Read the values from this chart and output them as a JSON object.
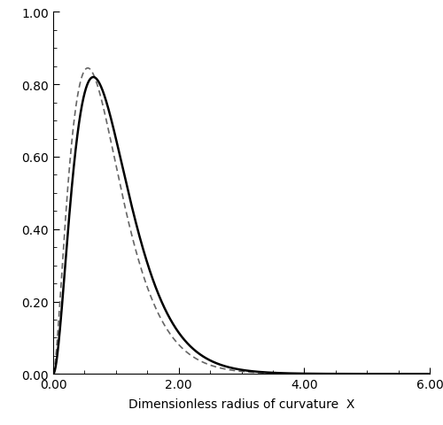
{
  "title": "",
  "xlabel": "Dimensionless radius of curvature  X",
  "ylabel": "",
  "xlim": [
    0.0,
    6.0
  ],
  "ylim": [
    0.0,
    1.0
  ],
  "xticks": [
    0.0,
    2.0,
    4.0,
    6.0
  ],
  "yticks": [
    0.0,
    0.2,
    0.4,
    0.6,
    0.8,
    1.0
  ],
  "xtick_labels": [
    "0.00",
    "2.00",
    "4.00",
    "6.00"
  ],
  "ytick_labels": [
    "0.00",
    "0.20",
    "0.40",
    "0.60",
    "0.80",
    "1.00"
  ],
  "solid_color": "#000000",
  "dashed_color": "#666666",
  "solid_lw": 1.8,
  "dashed_lw": 1.2,
  "background_color": "#ffffff",
  "solid_k": 3.0,
  "solid_scale": 0.32,
  "solid_peak": 0.82,
  "dashed_k": 2.75,
  "dashed_scale": 0.315,
  "dashed_peak": 0.845,
  "figsize": [
    5.0,
    4.81
  ],
  "dpi": 100
}
